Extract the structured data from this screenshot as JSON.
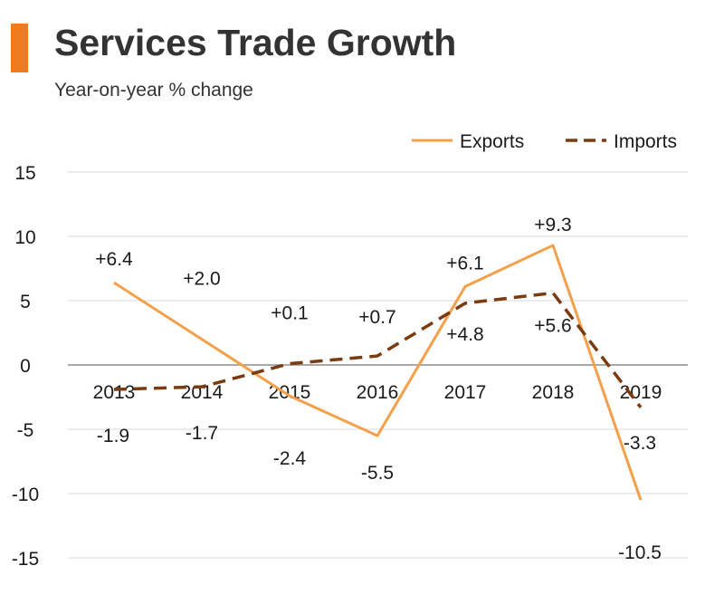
{
  "colors": {
    "accent": "#f07a20",
    "exports": "#f4a04b",
    "imports": "#7a3b10",
    "grid": "#d9d9d9",
    "axis": "#8c8c8c"
  },
  "legend": {
    "exports_label": "Exports",
    "imports_label": "Imports"
  },
  "chart_data": {
    "type": "line",
    "title": "Services Trade Growth",
    "subtitle": "Year-on-year % change",
    "xlabel": "",
    "ylabel": "",
    "categories": [
      "2013",
      "2014",
      "2015",
      "2016",
      "2017",
      "2018",
      "2019"
    ],
    "ylim": [
      -15,
      15
    ],
    "yticks": [
      "15",
      "10",
      "5",
      "0",
      "-5",
      "-10",
      "-15"
    ],
    "ytick_values": [
      15,
      10,
      5,
      0,
      -5,
      -10,
      -15
    ],
    "grid": true,
    "legend_position": "top-right",
    "series": [
      {
        "name": "Exports",
        "style": "solid",
        "values": [
          6.4,
          2.0,
          -2.4,
          -5.5,
          6.1,
          9.3,
          -10.5
        ],
        "labels": [
          "+6.4",
          "+2.0",
          "-2.4",
          "-5.5",
          "+6.1",
          "+9.3",
          "-10.5"
        ]
      },
      {
        "name": "Imports",
        "style": "dashed",
        "values": [
          -1.9,
          -1.7,
          0.1,
          0.7,
          4.8,
          5.6,
          -3.3
        ],
        "labels": [
          "-1.9",
          "-1.7",
          "+0.1",
          "+0.7",
          "+4.8",
          "+5.6",
          "-3.3"
        ]
      }
    ]
  }
}
